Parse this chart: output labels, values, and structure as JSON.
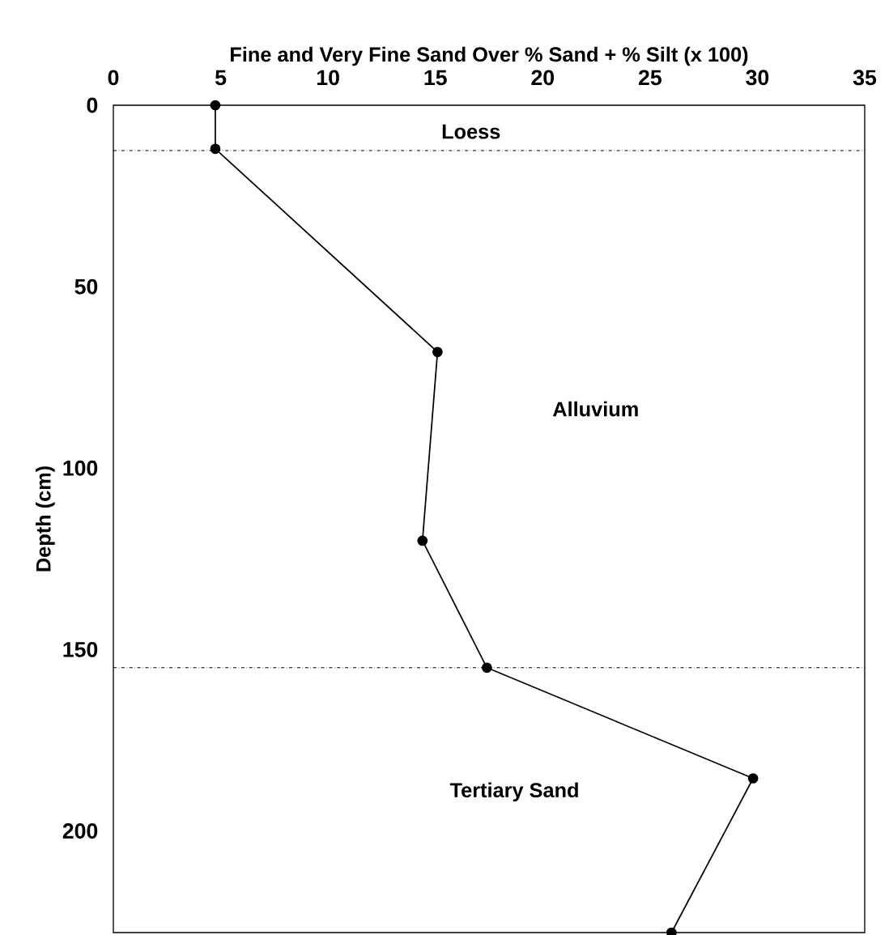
{
  "chart_data": {
    "type": "line",
    "xlabel": "Fine and Very Fine Sand Over % Sand + % Silt (x 100)",
    "ylabel": "Depth (cm)",
    "x": [
      4.75,
      4.75,
      15.1,
      14.4,
      17.4,
      29.8,
      26.0
    ],
    "values": [
      0,
      12,
      68,
      120,
      155,
      185.5,
      228
    ],
    "color": "#000000",
    "marker": "circle",
    "line_style": "solid",
    "xlim": [
      0,
      35
    ],
    "xticks": [
      0,
      5,
      10,
      15,
      20,
      25,
      30,
      35
    ],
    "ylim": [
      228,
      0
    ],
    "yticks": [
      0,
      50,
      100,
      150,
      200
    ],
    "ref_lines": [
      {
        "axis": "y",
        "value": 12.5,
        "line_style": "dashdot",
        "color": "#000000"
      },
      {
        "axis": "y",
        "value": 155,
        "line_style": "dashdot",
        "color": "#000000"
      }
    ],
    "annotations": [
      "Loess",
      "Alluvium",
      "Tertiary Sand"
    ]
  }
}
